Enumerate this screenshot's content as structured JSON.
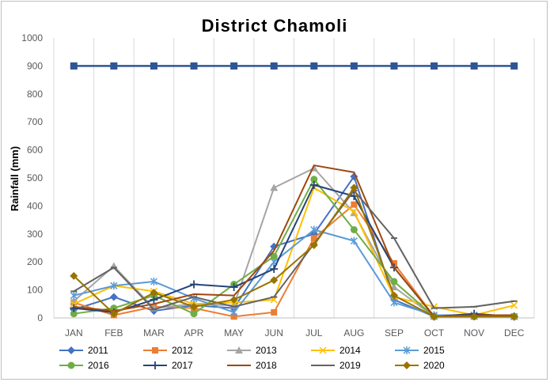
{
  "chart_data": {
    "type": "line",
    "title": "District Chamoli",
    "xlabel": "",
    "ylabel": "Rainfall (mm)",
    "ylim": [
      0,
      1000
    ],
    "yticks": [
      0,
      100,
      200,
      300,
      400,
      500,
      600,
      700,
      800,
      900,
      1000
    ],
    "categories": [
      "JAN",
      "FEB",
      "MAR",
      "APR",
      "MAY",
      "JUN",
      "JUL",
      "AUG",
      "SEP",
      "OCT",
      "NOV",
      "DEC"
    ],
    "grid": "vertical",
    "legend_position": "bottom",
    "series": [
      {
        "name": "2011",
        "color": "#4472c4",
        "marker": "diamond",
        "values": [
          30,
          75,
          25,
          45,
          35,
          255,
          300,
          505,
          65,
          5,
          5,
          5
        ]
      },
      {
        "name": "2012",
        "color": "#ed7d31",
        "marker": "square",
        "values": [
          55,
          10,
          40,
          35,
          5,
          20,
          285,
          405,
          195,
          5,
          5,
          5
        ]
      },
      {
        "name": "2013",
        "color": "#a5a5a5",
        "marker": "triangle",
        "values": [
          60,
          185,
          35,
          50,
          45,
          465,
          535,
          375,
          110,
          5,
          5,
          5
        ]
      },
      {
        "name": "2014",
        "color": "#ffc000",
        "marker": "x",
        "values": [
          50,
          115,
          95,
          50,
          55,
          65,
          465,
          380,
          75,
          40,
          10,
          45
        ]
      },
      {
        "name": "2015",
        "color": "#5b9bd5",
        "marker": "asterisk",
        "values": [
          80,
          115,
          130,
          70,
          20,
          200,
          315,
          275,
          55,
          10,
          10,
          5
        ]
      },
      {
        "name": "2016",
        "color": "#70ad47",
        "marker": "circle",
        "values": [
          15,
          35,
          80,
          15,
          120,
          220,
          495,
          315,
          130,
          5,
          5,
          5
        ]
      },
      {
        "name": "2017",
        "color": "#264478",
        "marker": "plus",
        "values": [
          35,
          20,
          65,
          120,
          110,
          175,
          475,
          435,
          180,
          5,
          15,
          5
        ]
      },
      {
        "name": "2018",
        "color": "#9e480e",
        "marker": "none",
        "values": [
          40,
          25,
          50,
          85,
          80,
          240,
          545,
          520,
          180,
          5,
          10,
          10
        ]
      },
      {
        "name": "2019",
        "color": "#636363",
        "marker": "dash",
        "values": [
          95,
          180,
          30,
          75,
          40,
          75,
          265,
          455,
          285,
          35,
          40,
          60
        ]
      },
      {
        "name": "2020",
        "color": "#997300",
        "marker": "diamond",
        "values": [
          150,
          15,
          90,
          40,
          65,
          135,
          260,
          465,
          80,
          5,
          5,
          5
        ]
      },
      {
        "name": "",
        "color": "#2f5597",
        "marker": "square",
        "values": [
          900,
          900,
          900,
          900,
          900,
          900,
          900,
          900,
          900,
          900,
          900,
          900
        ]
      }
    ]
  }
}
